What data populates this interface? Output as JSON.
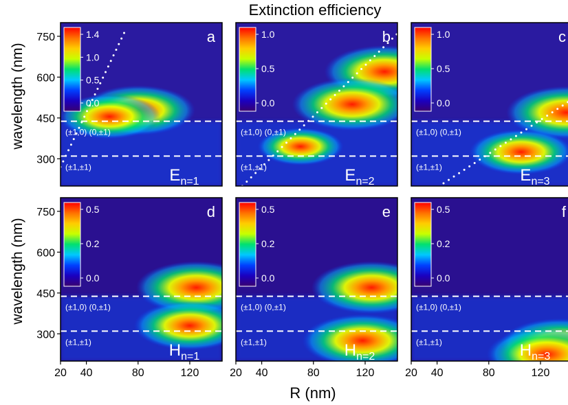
{
  "figure": {
    "title": "Extinction efficiency",
    "xlabel": "R (nm)",
    "ylabel": "wavelength (nm)",
    "xticks": [
      "20",
      "40",
      "80",
      "120"
    ],
    "yticks": [
      "300",
      "450",
      "600",
      "750"
    ],
    "line_labels": {
      "upper": "(±1,0) (0,±1)",
      "lower": "(±1,±1)"
    }
  },
  "chart_data": [
    {
      "type": "heatmap",
      "panel": "a",
      "mode": "E",
      "order": "n=1",
      "colorbar_ticks": [
        "1.4",
        "1.0",
        "0.5",
        "0.0"
      ],
      "xlim": [
        20,
        145
      ],
      "ylim": [
        200,
        800
      ],
      "cutoff_lines_nm": [
        438,
        310
      ],
      "hotspots": [
        {
          "R": 80,
          "wavelength": 478,
          "level": 1.3
        },
        {
          "R": 58,
          "wavelength": 455,
          "level": 1.1
        }
      ],
      "diagonal_dotted_line": [
        [
          20,
          270
        ],
        [
          70,
          770
        ]
      ]
    },
    {
      "type": "heatmap",
      "panel": "b",
      "mode": "E",
      "order": "n=2",
      "colorbar_ticks": [
        "1.0",
        "0.5",
        "0.0"
      ],
      "xlim": [
        20,
        145
      ],
      "ylim": [
        200,
        800
      ],
      "cutoff_lines_nm": [
        438,
        310
      ],
      "hotspots": [
        {
          "R": 135,
          "wavelength": 620,
          "level": 1.2
        },
        {
          "R": 110,
          "wavelength": 500,
          "level": 1.0
        },
        {
          "R": 70,
          "wavelength": 345,
          "level": 0.6
        }
      ],
      "diagonal_dotted_line": [
        [
          25,
          200
        ],
        [
          145,
          760
        ]
      ]
    },
    {
      "type": "heatmap",
      "panel": "c",
      "mode": "E",
      "order": "n=3",
      "colorbar_ticks": [
        "1.0",
        "0.5",
        "0.0"
      ],
      "xlim": [
        20,
        145
      ],
      "ylim": [
        200,
        800
      ],
      "cutoff_lines_nm": [
        438,
        310
      ],
      "hotspots": [
        {
          "R": 140,
          "wavelength": 470,
          "level": 1.1
        },
        {
          "R": 105,
          "wavelength": 325,
          "level": 0.8
        }
      ],
      "diagonal_dotted_line": [
        [
          45,
          210
        ],
        [
          145,
          520
        ]
      ]
    },
    {
      "type": "heatmap",
      "panel": "d",
      "mode": "H",
      "order": "n=1",
      "colorbar_ticks": [
        "0.5",
        "0.2",
        "0.0"
      ],
      "xlim": [
        20,
        145
      ],
      "ylim": [
        200,
        800
      ],
      "cutoff_lines_nm": [
        438,
        310
      ],
      "hotspots": [
        {
          "R": 125,
          "wavelength": 470,
          "level": 0.5
        },
        {
          "R": 120,
          "wavelength": 330,
          "level": 0.45
        }
      ]
    },
    {
      "type": "heatmap",
      "panel": "e",
      "mode": "H",
      "order": "n=2",
      "colorbar_ticks": [
        "0.5",
        "0.2",
        "0.0"
      ],
      "xlim": [
        20,
        145
      ],
      "ylim": [
        200,
        800
      ],
      "cutoff_lines_nm": [
        438,
        310
      ],
      "hotspots": [
        {
          "R": 125,
          "wavelength": 470,
          "level": 0.55
        },
        {
          "R": 118,
          "wavelength": 275,
          "level": 0.6
        }
      ]
    },
    {
      "type": "heatmap",
      "panel": "f",
      "mode": "H",
      "order": "n=3",
      "colorbar_ticks": [
        "0.5",
        "0.2",
        "0.0"
      ],
      "xlim": [
        20,
        145
      ],
      "ylim": [
        200,
        800
      ],
      "cutoff_lines_nm": [
        438,
        310
      ],
      "hotspots": [
        {
          "R": 135,
          "wavelength": 260,
          "level": 0.55
        },
        {
          "R": 125,
          "wavelength": 225,
          "level": 0.6
        }
      ]
    }
  ],
  "colors": {
    "colormap": [
      "#3a0070",
      "#1a00c0",
      "#0040ff",
      "#00c8ff",
      "#00e070",
      "#c8ff00",
      "#ffcc00",
      "#ff7000",
      "#ff0000"
    ],
    "dashed_line": "#ffffff",
    "dotted_line": "#ffffff"
  }
}
